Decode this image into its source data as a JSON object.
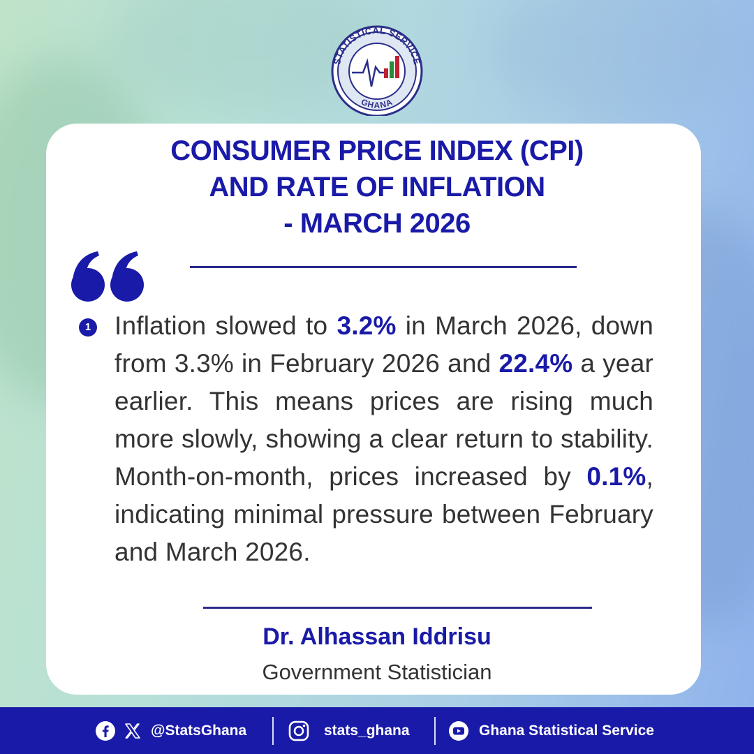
{
  "logo": {
    "top_text": "STATISTICAL SERVICE",
    "bottom_text": "GHANA"
  },
  "title": {
    "line1": "CONSUMER PRICE INDEX (CPI)",
    "line2": "AND RATE OF INFLATION",
    "line3": "- MARCH 2026"
  },
  "bullet_number": "1",
  "paragraph": {
    "p1": "Inflation slowed to ",
    "h1": "3.2%",
    "p2": " in March 2026, down from 3.3% in February 2026 and ",
    "h2": "22.4%",
    "p3": " a year earlier. This means prices are rising much more slowly, showing a clear return to stability. Month-on-month, prices increased by ",
    "h3": "0.1%",
    "p4": ", indicating minimal pressure between February and March 2026."
  },
  "signature": {
    "name": "Dr. Alhassan Iddrisu",
    "role": "Government Statistician"
  },
  "footer": {
    "handle_fb_x": "@StatsGhana",
    "handle_instagram": "stats_ghana",
    "handle_youtube": "Ghana Statistical Service"
  },
  "colors": {
    "brand_blue": "#1a1aa8",
    "text_gray": "#333333",
    "footer_bg": "#1a1aa8"
  },
  "icons": [
    "facebook-icon",
    "x-icon",
    "instagram-icon",
    "youtube-icon",
    "quote-icon"
  ]
}
